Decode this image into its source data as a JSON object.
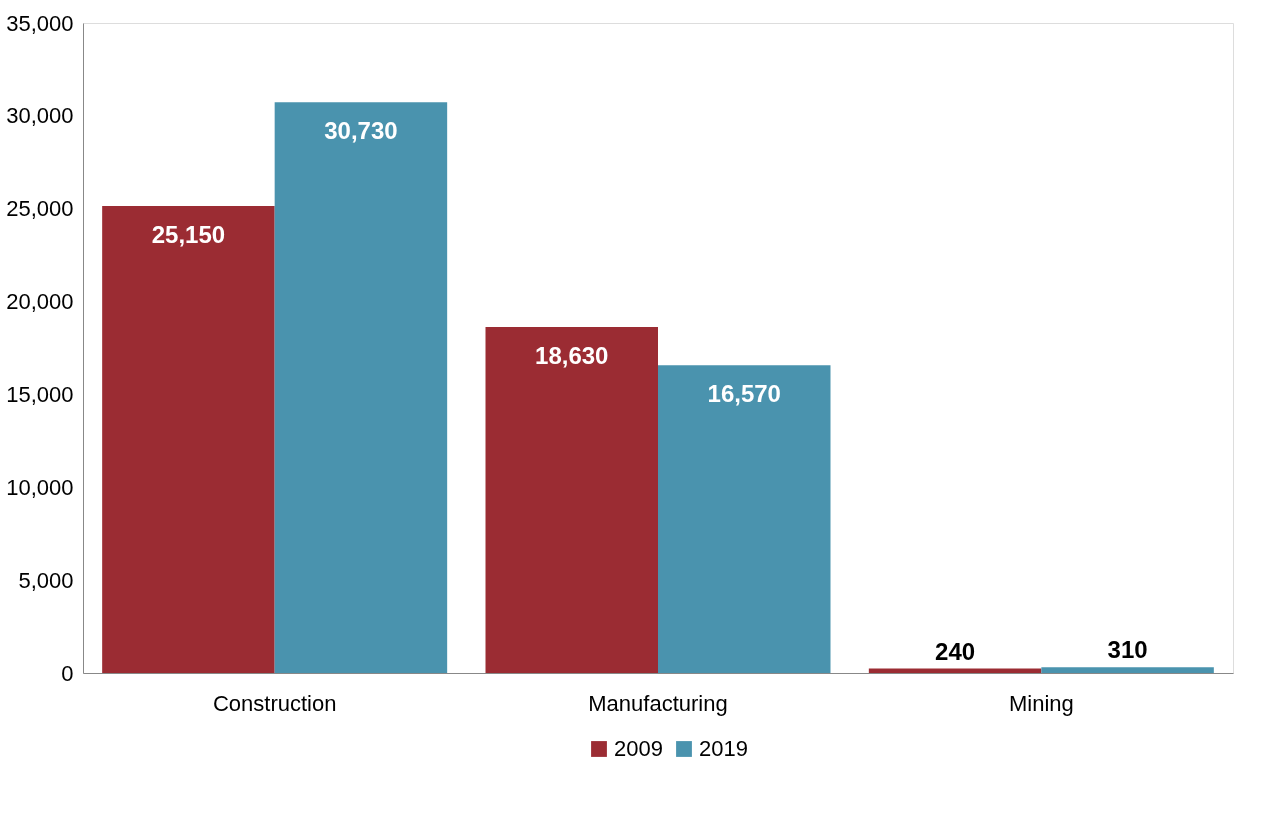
{
  "chart_data": {
    "type": "bar",
    "categories": [
      "Construction",
      "Manufacturing",
      "Mining"
    ],
    "series": [
      {
        "name": "2009",
        "color": "#9b2c33",
        "values": [
          25150,
          18630,
          240
        ],
        "value_labels": [
          "25,150",
          "18,630",
          "240"
        ]
      },
      {
        "name": "2019",
        "color": "#4a93ae",
        "values": [
          30730,
          16570,
          310
        ],
        "value_labels": [
          "30,730",
          "16,570",
          "310"
        ]
      }
    ],
    "ylim": [
      0,
      35000
    ],
    "yticks": [
      {
        "value": 0,
        "label": "0"
      },
      {
        "value": 5000,
        "label": "5,000"
      },
      {
        "value": 10000,
        "label": "10,000"
      },
      {
        "value": 15000,
        "label": "15,000"
      },
      {
        "value": 20000,
        "label": "20,000"
      },
      {
        "value": 25000,
        "label": "25,000"
      },
      {
        "value": 30000,
        "label": "30,000"
      },
      {
        "value": 35000,
        "label": "35,000"
      }
    ],
    "grid": false,
    "legend": "bottom"
  }
}
